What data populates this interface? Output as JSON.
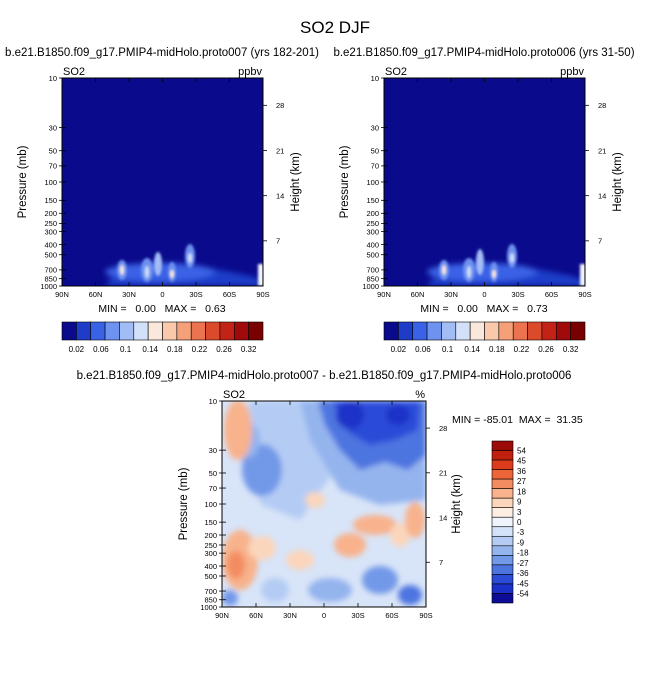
{
  "figure_title": "SO2 DJF",
  "chart_data": [
    {
      "type": "heatmap",
      "title": "b.e21.B1850.f09_g17.PMIP4-midHolo.proto007 (yrs 182-201)",
      "variable": "SO2",
      "units": "ppbv",
      "xlabel": "",
      "ylabel": "Pressure (mb)",
      "ylabel_right": "Height (km)",
      "x_tick_labels": [
        "90N",
        "60N",
        "30N",
        "0",
        "30S",
        "60S",
        "90S"
      ],
      "y_tick_labels": [
        "10",
        "30",
        "50",
        "70",
        "100",
        "150",
        "200",
        "250",
        "300",
        "400",
        "500",
        "700",
        "850",
        "1000"
      ],
      "height_tick_labels": [
        "28",
        "21",
        "14",
        "7"
      ],
      "log_pressure_axis": true,
      "ylim": [
        1000,
        10
      ],
      "min_label": "MIN =   0.00   MAX =   0.63",
      "min": 0.0,
      "max": 0.63,
      "colorbar_labels": [
        "0.02",
        "0.06",
        "0.1",
        "0.14",
        "0.18",
        "0.22",
        "0.26",
        "0.32"
      ],
      "colorbar_colors": [
        "#0a0a8c",
        "#1e3cc8",
        "#3a62e6",
        "#6e92f0",
        "#a2bcf6",
        "#d2e0fa",
        "#fae8dc",
        "#fac8aa",
        "#f5a078",
        "#eb7350",
        "#dc4a2c",
        "#c32316",
        "#a00a0a",
        "#780000"
      ],
      "background_color": "#0a0a8c"
    },
    {
      "type": "heatmap",
      "title": "b.e21.B1850.f09_g17.PMIP4-midHolo.proto006 (yrs 31-50)",
      "variable": "SO2",
      "units": "ppbv",
      "xlabel": "",
      "ylabel": "Pressure (mb)",
      "ylabel_right": "Height (km)",
      "x_tick_labels": [
        "90N",
        "60N",
        "30N",
        "0",
        "30S",
        "60S",
        "90S"
      ],
      "y_tick_labels": [
        "10",
        "30",
        "50",
        "70",
        "100",
        "150",
        "200",
        "250",
        "300",
        "400",
        "500",
        "700",
        "850",
        "1000"
      ],
      "height_tick_labels": [
        "28",
        "21",
        "14",
        "7"
      ],
      "log_pressure_axis": true,
      "ylim": [
        1000,
        10
      ],
      "min_label": "MIN =   0.00   MAX =   0.73",
      "min": 0.0,
      "max": 0.73,
      "colorbar_labels": [
        "0.02",
        "0.06",
        "0.1",
        "0.14",
        "0.18",
        "0.22",
        "0.26",
        "0.32"
      ],
      "colorbar_colors": [
        "#0a0a8c",
        "#1e3cc8",
        "#3a62e6",
        "#6e92f0",
        "#a2bcf6",
        "#d2e0fa",
        "#fae8dc",
        "#fac8aa",
        "#f5a078",
        "#eb7350",
        "#dc4a2c",
        "#c32316",
        "#a00a0a",
        "#780000"
      ],
      "background_color": "#0a0a8c"
    },
    {
      "type": "heatmap",
      "title": "b.e21.B1850.f09_g17.PMIP4-midHolo.proto007 - b.e21.B1850.f09_g17.PMIP4-midHolo.proto006",
      "variable": "SO2",
      "units": "%",
      "xlabel": "",
      "ylabel": "Pressure (mb)",
      "ylabel_right": "Height (km)",
      "x_tick_labels": [
        "90N",
        "60N",
        "30N",
        "0",
        "30S",
        "60S",
        "90S"
      ],
      "y_tick_labels": [
        "10",
        "30",
        "50",
        "70",
        "100",
        "150",
        "200",
        "250",
        "300",
        "400",
        "500",
        "700",
        "850",
        "1000"
      ],
      "height_tick_labels": [
        "28",
        "21",
        "14",
        "7"
      ],
      "log_pressure_axis": true,
      "ylim": [
        1000,
        10
      ],
      "min_label": "MIN = -85.01  MAX =  31.35",
      "min": -85.01,
      "max": 31.35,
      "colorbar_labels": [
        "54",
        "45",
        "36",
        "27",
        "18",
        "9",
        "3",
        "0",
        "-3",
        "-9",
        "-18",
        "-27",
        "-36",
        "-45",
        "-54"
      ],
      "colorbar_colors": [
        "#9c0a0a",
        "#c0200e",
        "#dc3c1c",
        "#ec6438",
        "#f38c60",
        "#f8b28c",
        "#fbd6bc",
        "#fdeee4",
        "#eef3fc",
        "#d4e2f8",
        "#b4ccf4",
        "#94b4ee",
        "#7298e8",
        "#4e74e0",
        "#2c4cd8",
        "#1a30c8",
        "#0c0c96"
      ],
      "background_color": "#d8e4f8"
    }
  ]
}
